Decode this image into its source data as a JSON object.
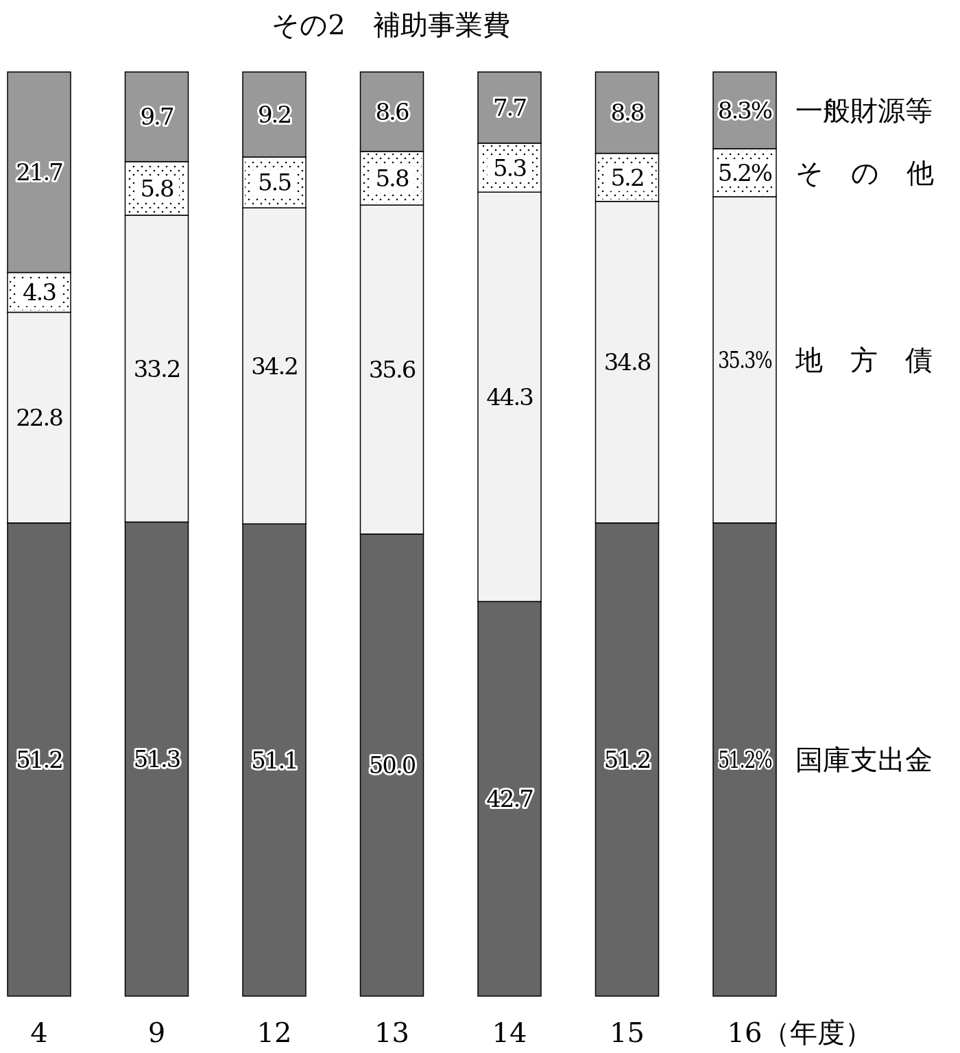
{
  "chart_data": {
    "type": "bar",
    "stacked": true,
    "title": "その2　補助事業費",
    "xlabel": "（年度）",
    "categories": [
      "4",
      "9",
      "12",
      "13",
      "14",
      "15",
      "16"
    ],
    "series": [
      {
        "name": "国庫支出金",
        "color": "#666666",
        "values": [
          51.2,
          51.3,
          51.1,
          50.0,
          42.7,
          51.2,
          51.2
        ],
        "value_labels": [
          "51.2",
          "51.3",
          "51.1",
          "50.0",
          "42.7",
          "51.2",
          "51.2%"
        ]
      },
      {
        "name": "地　方　債",
        "color": "#f2f2f2",
        "values": [
          22.8,
          33.2,
          34.2,
          35.6,
          44.3,
          34.8,
          35.3
        ],
        "value_labels": [
          "22.8",
          "33.2",
          "34.2",
          "35.6",
          "44.3",
          "34.8",
          "35.3%"
        ]
      },
      {
        "name": "そ　の　他",
        "color": "#ffffff",
        "values": [
          4.3,
          5.8,
          5.5,
          5.8,
          5.3,
          5.2,
          5.2
        ],
        "value_labels": [
          "4.3",
          "5.8",
          "5.5",
          "5.8",
          "5.3",
          "5.2",
          "5.2%"
        ]
      },
      {
        "name": "一般財源等",
        "color": "#999999",
        "values": [
          21.7,
          9.7,
          9.2,
          8.6,
          7.7,
          8.8,
          8.3
        ],
        "value_labels": [
          "21.7",
          "9.7",
          "9.2",
          "8.6",
          "7.7",
          "8.8",
          "8.3%"
        ]
      }
    ]
  }
}
